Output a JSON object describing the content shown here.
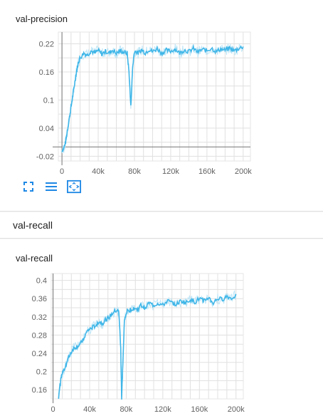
{
  "charts": [
    {
      "title": "val-precision"
    },
    {
      "title": "val-recall"
    }
  ],
  "group": {
    "label": "val-recall"
  },
  "toolbar": {
    "icons": [
      "fullscreen-icon",
      "toggle-log-icon",
      "fit-domain-icon"
    ]
  },
  "colors": {
    "series": "#3fb6e8",
    "series_light": "#bfe6f7",
    "axis": "#9e9e9e",
    "grid": "#e0e0e0"
  },
  "chart_data": [
    {
      "type": "line",
      "title": "val-precision",
      "xlabel": "",
      "ylabel": "",
      "xlim": [
        -4000,
        208000
      ],
      "ylim": [
        -0.03,
        0.245
      ],
      "x_ticks": [
        0,
        40000,
        80000,
        120000,
        160000,
        200000
      ],
      "x_tick_labels": [
        "0",
        "40k",
        "80k",
        "120k",
        "160k",
        "200k"
      ],
      "y_ticks": [
        -0.02,
        0.04,
        0.1,
        0.16,
        0.22
      ],
      "y_tick_labels": [
        "-0.02",
        "0.04",
        "0.1",
        "0.16",
        "0.22"
      ],
      "grid": true,
      "series": [
        {
          "x": [
            0,
            2000,
            4000,
            6000,
            8000,
            10000,
            12000,
            14000,
            16000,
            18000,
            20000,
            24000,
            28000,
            32000,
            36000,
            40000,
            44000,
            48000,
            52000,
            56000,
            60000,
            64000,
            68000,
            72000,
            74000,
            76000,
            78000,
            80000,
            84000,
            88000,
            92000,
            96000,
            100000,
            105000,
            110000,
            115000,
            120000,
            125000,
            130000,
            135000,
            140000,
            145000,
            150000,
            155000,
            160000,
            165000,
            170000,
            175000,
            180000,
            185000,
            190000,
            195000,
            200000
          ],
          "y": [
            -0.008,
            -0.003,
            0.01,
            0.035,
            0.06,
            0.085,
            0.11,
            0.135,
            0.16,
            0.18,
            0.19,
            0.2,
            0.196,
            0.205,
            0.2,
            0.206,
            0.198,
            0.204,
            0.2,
            0.207,
            0.199,
            0.205,
            0.202,
            0.2,
            0.16,
            0.085,
            0.17,
            0.205,
            0.2,
            0.207,
            0.201,
            0.208,
            0.203,
            0.21,
            0.2,
            0.206,
            0.204,
            0.209,
            0.2,
            0.207,
            0.203,
            0.21,
            0.202,
            0.208,
            0.205,
            0.211,
            0.203,
            0.209,
            0.206,
            0.211,
            0.205,
            0.21,
            0.214
          ]
        }
      ]
    },
    {
      "type": "line",
      "title": "val-recall",
      "xlabel": "",
      "ylabel": "",
      "xlim": [
        -2000,
        208000
      ],
      "ylim": [
        0.14,
        0.415
      ],
      "x_ticks": [
        0,
        40000,
        80000,
        120000,
        160000,
        200000
      ],
      "x_tick_labels": [
        "0",
        "40k",
        "80k",
        "120k",
        "160k",
        "200k"
      ],
      "y_ticks": [
        0.16,
        0.2,
        0.24,
        0.28,
        0.32,
        0.36,
        0.4
      ],
      "y_tick_labels": [
        "0.16",
        "0.2",
        "0.24",
        "0.28",
        "0.32",
        "0.36",
        "0.4"
      ],
      "grid": true,
      "series": [
        {
          "x": [
            6000,
            9000,
            12000,
            15000,
            18000,
            22000,
            26000,
            30000,
            34000,
            38000,
            42000,
            46000,
            50000,
            54000,
            58000,
            62000,
            66000,
            70000,
            72000,
            74000,
            75000,
            76000,
            78000,
            80000,
            84000,
            88000,
            92000,
            96000,
            100000,
            105000,
            110000,
            115000,
            120000,
            125000,
            130000,
            135000,
            140000,
            145000,
            150000,
            155000,
            160000,
            165000,
            170000,
            175000,
            180000,
            185000,
            190000,
            195000,
            200000
          ],
          "y": [
            0.145,
            0.19,
            0.205,
            0.22,
            0.235,
            0.25,
            0.255,
            0.26,
            0.275,
            0.29,
            0.295,
            0.3,
            0.31,
            0.305,
            0.315,
            0.32,
            0.33,
            0.335,
            0.33,
            0.25,
            0.14,
            0.2,
            0.31,
            0.33,
            0.335,
            0.34,
            0.335,
            0.345,
            0.34,
            0.35,
            0.345,
            0.35,
            0.345,
            0.355,
            0.35,
            0.348,
            0.355,
            0.35,
            0.358,
            0.352,
            0.36,
            0.355,
            0.362,
            0.35,
            0.36,
            0.358,
            0.365,
            0.36,
            0.37
          ]
        }
      ]
    }
  ]
}
